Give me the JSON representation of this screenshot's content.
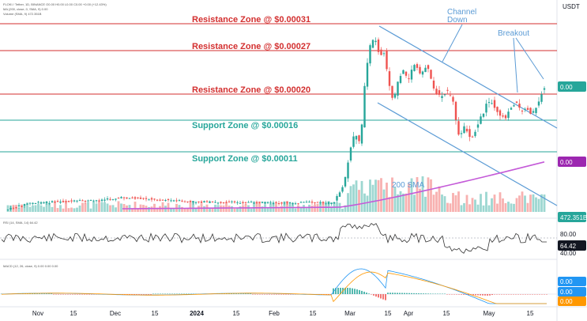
{
  "header": {
    "line1": "FLOKI / Tether, 1D, BINANCE  O0.00  H0.00  L0.00  C0.00  +0.00 (+12.43%)",
    "line2": "MA (200, close, 0, SMA, 9)  0.00",
    "line3": "Volume (SMA, 9)  472.351B"
  },
  "currency": "USDT",
  "zones": [
    {
      "label": "Resistance Zone @ $0.00031",
      "type": "resistance",
      "color": "#d32f2f"
    },
    {
      "label": "Resistance Zone @ $0.00027",
      "type": "resistance",
      "color": "#d32f2f"
    },
    {
      "label": "Resistance Zone @ $0.00020",
      "type": "resistance",
      "color": "#d32f2f"
    },
    {
      "label": "Support Zone @ $0.00016",
      "type": "support",
      "color": "#26a69a"
    },
    {
      "label": "Support Zone @ $0.00011",
      "type": "support",
      "color": "#26a69a"
    }
  ],
  "annotations": {
    "channel": "Channel\nDown",
    "breakout": "Breakout",
    "sma": "200 SMA"
  },
  "price_badges": [
    {
      "text": "0.00",
      "color": "#26a69a"
    },
    {
      "text": "0.00",
      "color": "#9c27b0"
    },
    {
      "text": "472.351B",
      "color": "#26a69a"
    }
  ],
  "rsi": {
    "label": "RSI (14, SMA, 14)  64.42",
    "value": "64.42",
    "ticks": [
      "80.00",
      "40.00"
    ]
  },
  "macd": {
    "label": "MACD (12, 26, close, 9)  0.00  0.00  0.00",
    "badges": [
      {
        "text": "0.00",
        "color": "#2196f3"
      },
      {
        "text": "0.00",
        "color": "#2196f3"
      },
      {
        "text": "0.00",
        "color": "#ff9800"
      }
    ]
  },
  "colors": {
    "up": "#26a69a",
    "down": "#ef5350",
    "sma": "#c45ad8",
    "channel": "#5b9bd5",
    "resistance": "#d32f2f",
    "support": "#26a69a"
  },
  "chart_data": {
    "type": "candlestick",
    "symbol": "FLOKI/USDT, 1D, BINANCE",
    "x_tick_labels": [
      "Nov",
      "15",
      "Dec",
      "15",
      "2024",
      "15",
      "Feb",
      "15",
      "Mar",
      "15",
      "Apr",
      "15",
      "May",
      "15"
    ],
    "price_levels": {
      "resistance": [
        0.00031,
        0.00027,
        0.0002
      ],
      "support": [
        0.00016,
        0.00011
      ]
    },
    "price_axis_labels": [
      "0.00",
      "0.00"
    ],
    "volume_last": "472.351B",
    "rsi_last": 64.42,
    "rsi_ticks": [
      80.0,
      40.0
    ],
    "macd_values": [
      0.0,
      0.0,
      0.0
    ]
  }
}
